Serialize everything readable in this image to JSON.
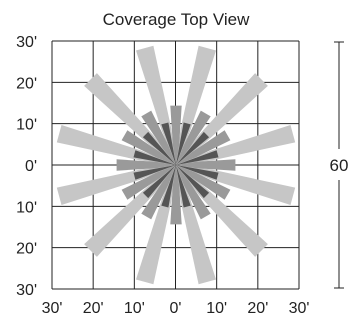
{
  "title": "Coverage Top View",
  "y_tick_labels": [
    "30'",
    "20'",
    "10'",
    "0'",
    "10'",
    "20'",
    "30'"
  ],
  "x_tick_labels": [
    "30'",
    "20'",
    "10'",
    "0'",
    "10'",
    "20'",
    "30'"
  ],
  "dimension_label": "60",
  "colors": {
    "grid": "#222222",
    "long_beam": "#c6c6c6",
    "medium_beam": "#9a9a9a",
    "short_beam": "#555555"
  },
  "coverage_pattern": {
    "long_beams": {
      "count": 12,
      "start_angle_deg": 15,
      "step_deg": 30,
      "reach_ft": 29.5,
      "inner_ft": 9,
      "half_width_ft": 2.2
    },
    "medium_beams": {
      "count": 12,
      "start_angle_deg": 0,
      "step_deg": 30,
      "reach_ft": 14.5,
      "inner_ft": 5,
      "half_width_ft": 1.4
    },
    "short_beams": {
      "count": 12,
      "start_angle_deg": 15,
      "step_deg": 30,
      "reach_ft": 10.5,
      "inner_ft": 0,
      "half_width_ft": 0.9
    }
  }
}
